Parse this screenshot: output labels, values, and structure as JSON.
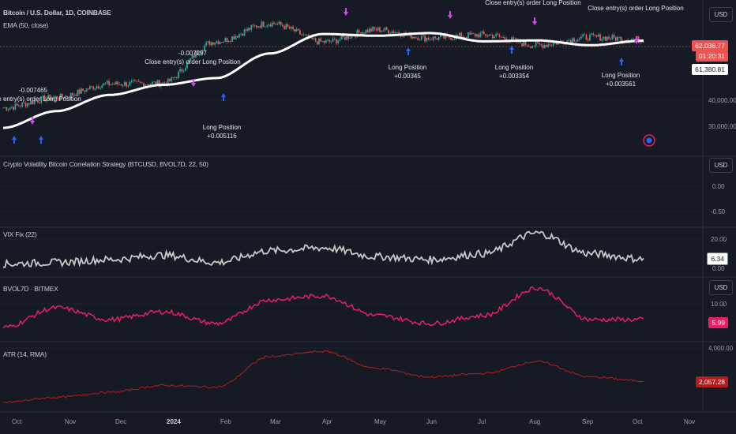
{
  "header": {
    "symbol_title": "Bitcoin / U.S. Dollar, 1D, COINBASE",
    "ema_label": "EMA (50, close)"
  },
  "currency": "USD",
  "price_axis": {
    "ticks": [
      "40,000.00",
      "30,000.00"
    ],
    "current_price": "62,036.77",
    "countdown": "01:20:31",
    "ema_value": "61,380.81"
  },
  "panes": {
    "strategy": {
      "title": "Crypto Volatility Bitcoin Correlation Strategy (BTCUSD, BVOL7D, 22, 50)",
      "ticks": [
        "0.00",
        "-0.50"
      ]
    },
    "vixfix": {
      "title": "VIX Fix (22)",
      "ticks": [
        "20.00",
        "0.00"
      ],
      "value": "6.34"
    },
    "bvol": {
      "title": "BVOL7D · BITMEX",
      "ticks": [
        "10.00"
      ],
      "value": "5.99"
    },
    "atr": {
      "title": "ATR (14, RMA)",
      "ticks": [
        "4,000.00"
      ],
      "value": "2,057.28"
    }
  },
  "annotations": [
    {
      "text": [
        "-0.007465",
        "Close entry(s) order Long Position"
      ]
    },
    {
      "text": [
        "-0.007297",
        "Close entry(s) order Long Position"
      ]
    },
    {
      "text": [
        "Long Position",
        "+0.005116"
      ]
    },
    {
      "text": [
        "Long Position",
        "+0.00345"
      ]
    },
    {
      "text": [
        "Close entry(s) order Long Position"
      ]
    },
    {
      "text": [
        "Long Position",
        "+0.003354"
      ]
    },
    {
      "text": [
        "Close entry(s) order Long Position"
      ]
    },
    {
      "text": [
        "Long Position",
        "+0.003561"
      ]
    }
  ],
  "time_axis": [
    "Oct",
    "Nov",
    "Dec",
    "2024",
    "Feb",
    "Mar",
    "Apr",
    "May",
    "Jun",
    "Jul",
    "Aug",
    "Sep",
    "Oct",
    "Nov"
  ],
  "colors": {
    "background": "#161a25",
    "bull": "#26a69a",
    "bear": "#ef5350",
    "ema": "#ffffff",
    "vix": "#c8c8c8",
    "bvol": "#e91e63",
    "atr": "#b71c1c",
    "entry_arrow": "#2962ff",
    "exit_arrow": "#e040fb"
  },
  "chart_data": [
    {
      "type": "candlestick",
      "title": "Bitcoin / U.S. Dollar, 1D, COINBASE",
      "x": [
        "2023-10",
        "2023-11",
        "2023-12",
        "2024-01",
        "2024-02",
        "2024-03",
        "2024-04",
        "2024-05",
        "2024-06",
        "2024-07",
        "2024-08",
        "2024-09",
        "2024-10"
      ],
      "close": [
        34500,
        37700,
        42300,
        42600,
        61100,
        71300,
        60600,
        67500,
        62700,
        64600,
        59000,
        63300,
        62036
      ],
      "ema50": [
        29000,
        33500,
        38500,
        42000,
        44500,
        55000,
        65000,
        64000,
        65500,
        61000,
        61500,
        59000,
        61380
      ]
    },
    {
      "type": "line",
      "title": "VIX Fix (22)",
      "x": [
        "2023-10",
        "2023-11",
        "2023-12",
        "2024-01",
        "2024-02",
        "2024-03",
        "2024-04",
        "2024-05",
        "2024-06",
        "2024-07",
        "2024-08",
        "2024-09",
        "2024-10"
      ],
      "values": [
        3,
        4,
        6,
        9,
        4,
        12,
        14,
        8,
        6,
        10,
        24,
        10,
        6.34
      ]
    },
    {
      "type": "line",
      "title": "BVOL7D · BITMEX",
      "x": [
        "2023-10",
        "2023-11",
        "2023-12",
        "2024-01",
        "2024-02",
        "2024-03",
        "2024-04",
        "2024-05",
        "2024-06",
        "2024-07",
        "2024-08",
        "2024-09",
        "2024-10"
      ],
      "values": [
        4,
        9,
        6,
        8,
        5,
        11,
        12,
        7,
        5,
        7,
        14,
        6,
        5.99
      ]
    },
    {
      "type": "line",
      "title": "ATR (14, RMA)",
      "x": [
        "2023-10",
        "2023-11",
        "2023-12",
        "2024-01",
        "2024-02",
        "2024-03",
        "2024-04",
        "2024-05",
        "2024-06",
        "2024-07",
        "2024-08",
        "2024-09",
        "2024-10"
      ],
      "values": [
        800,
        1100,
        1400,
        1800,
        1700,
        3500,
        3800,
        2800,
        2300,
        2500,
        3200,
        2300,
        2057.28
      ]
    }
  ]
}
